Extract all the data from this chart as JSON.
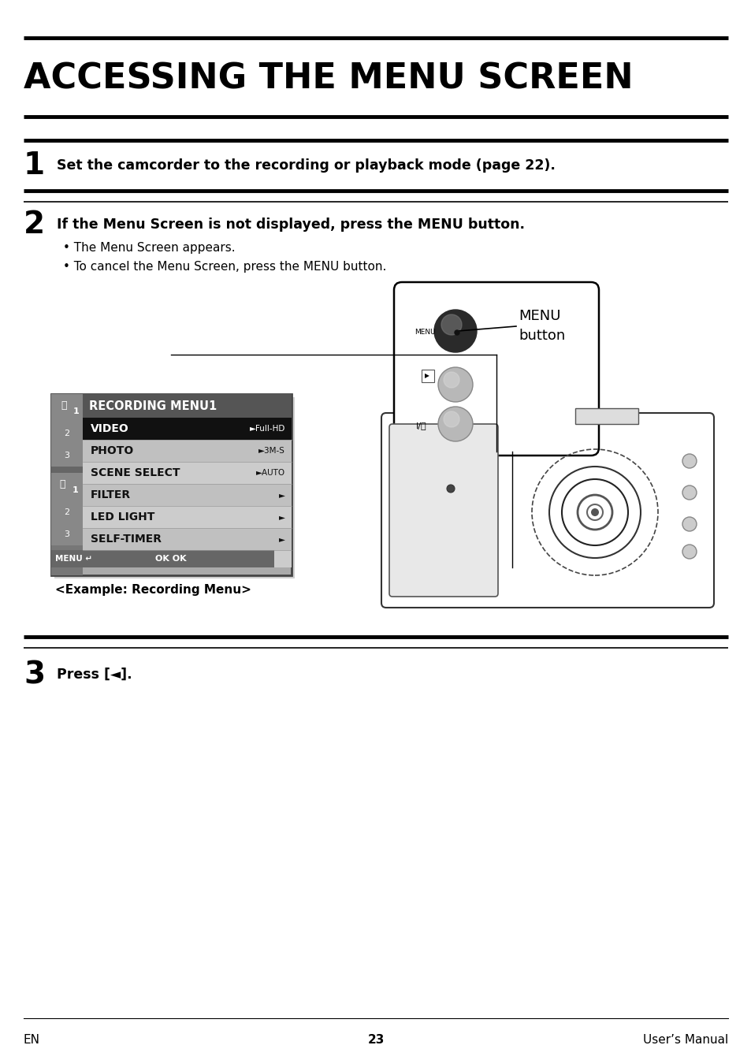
{
  "title": "ACCESSING THE MENU SCREEN",
  "bg_color": "#ffffff",
  "step1_number": "1",
  "step1_text": "Set the camcorder to the recording or playback mode (page 22).",
  "step2_number": "2",
  "step2_bold": "If the Menu Screen is not displayed, press the MENU button.",
  "step2_bullet1": "The Menu Screen appears.",
  "step2_bullet2": "To cancel the Menu Screen, press the MENU button.",
  "menu_label_line1": "MENU",
  "menu_label_line2": "button",
  "step3_number": "3",
  "step3_text": "Press [◄].",
  "example_label": "<Example: Recording Menu>",
  "footer_left": "EN",
  "footer_center": "23",
  "footer_right": "User’s Manual",
  "menu_title": "RECORDING MENU1",
  "menu_items": [
    "VIDEO",
    "PHOTO",
    "SCENE SELECT",
    "FILTER",
    "LED LIGHT",
    "SELF-TIMER"
  ],
  "menu_values": [
    "►Full-HD",
    "►3M-S",
    "►AUTO",
    "►",
    "►",
    "►"
  ]
}
